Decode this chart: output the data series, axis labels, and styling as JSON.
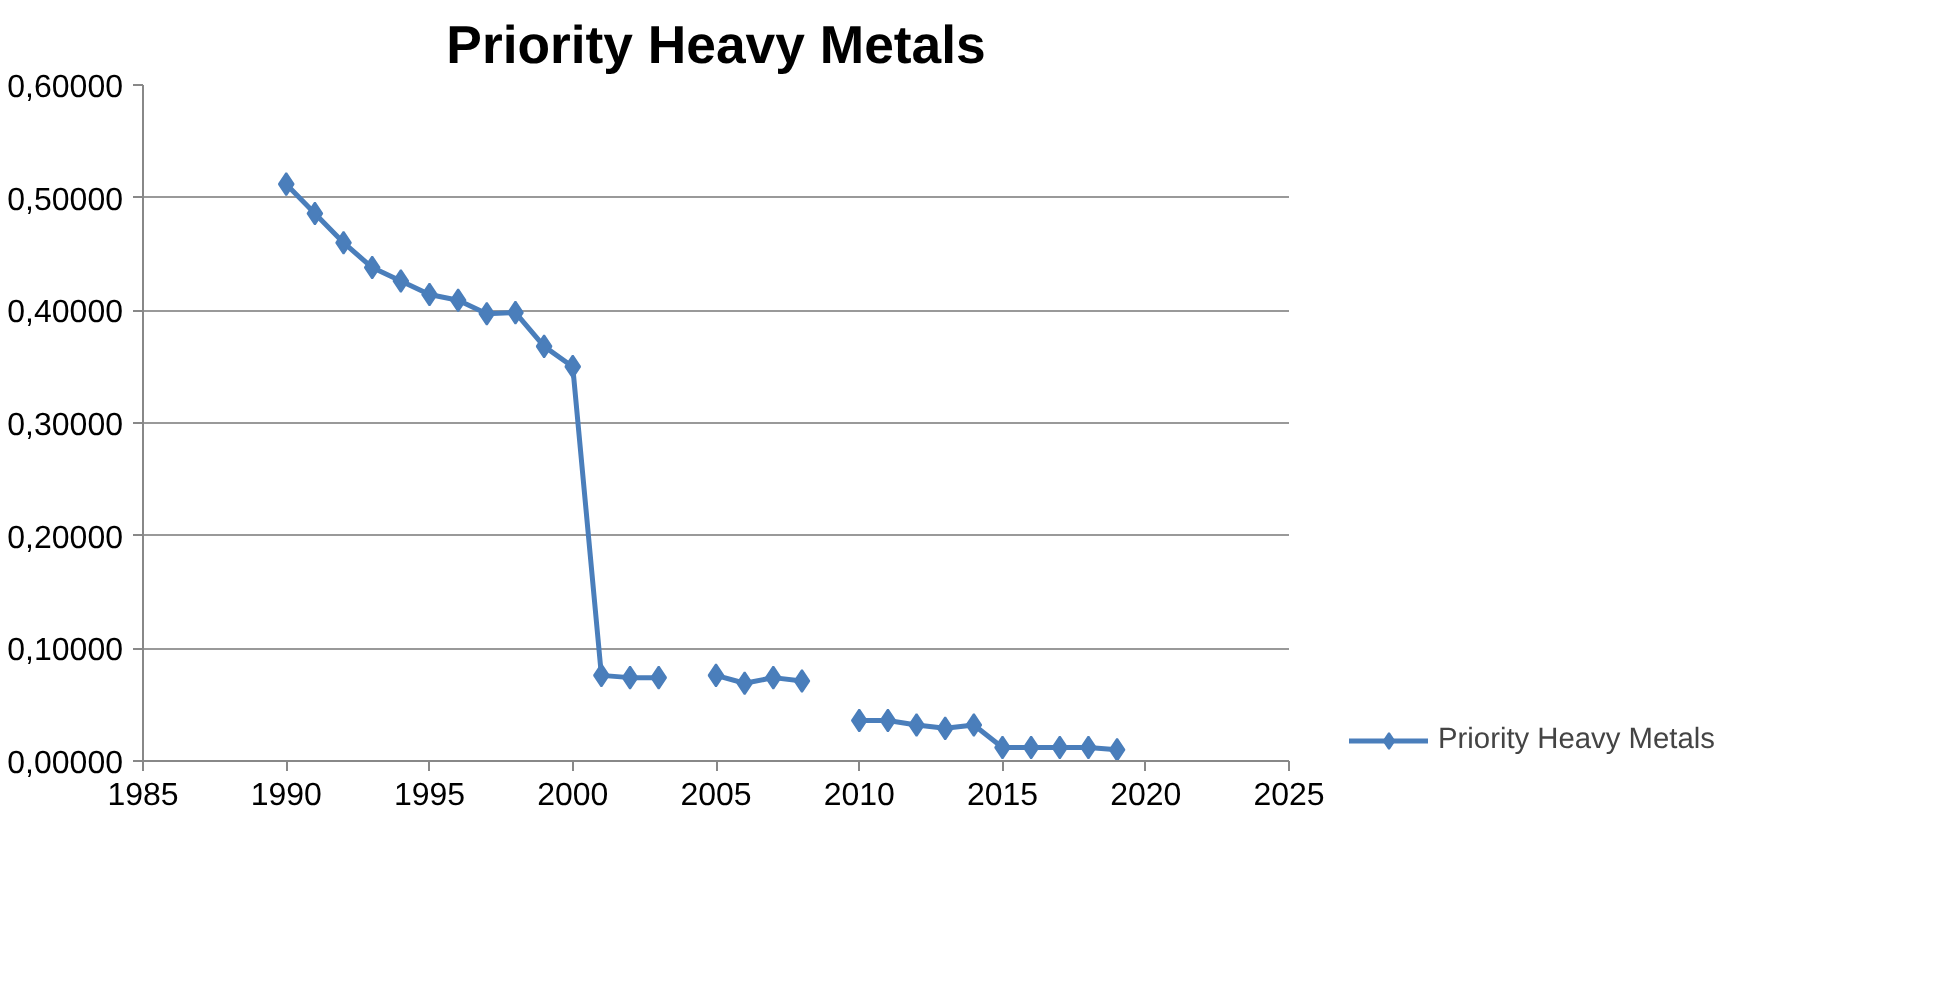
{
  "chart_data": {
    "type": "line",
    "title": "Priority Heavy Metals",
    "x": [
      1990,
      1991,
      1992,
      1993,
      1994,
      1995,
      1996,
      1997,
      1998,
      1999,
      2000,
      2001,
      2002,
      2003,
      2004,
      2005,
      2006,
      2007,
      2008,
      2009,
      2010,
      2011,
      2012,
      2013,
      2014,
      2015,
      2016,
      2017,
      2018,
      2019
    ],
    "series": [
      {
        "name": "Priority Heavy Metals",
        "color": "#4a7ebb",
        "values": [
          0.512,
          0.486,
          0.46,
          0.438,
          0.426,
          0.414,
          0.409,
          0.397,
          0.398,
          0.368,
          0.35,
          0.076,
          0.074,
          0.074,
          null,
          0.076,
          0.069,
          0.074,
          0.071,
          null,
          0.036,
          0.036,
          0.032,
          0.029,
          0.032,
          0.012,
          0.012,
          0.012,
          0.012,
          0.01
        ]
      }
    ],
    "xlim": [
      1985,
      2025
    ],
    "xticks": [
      1985,
      1990,
      1995,
      2000,
      2005,
      2010,
      2015,
      2020,
      2025
    ],
    "ylim": [
      0,
      0.6
    ],
    "yticks": [
      {
        "value": 0,
        "label": "0,00000"
      },
      {
        "value": 0.1,
        "label": "0,10000"
      },
      {
        "value": 0.2,
        "label": "0,20000"
      },
      {
        "value": 0.3,
        "label": "0,30000"
      },
      {
        "value": 0.4,
        "label": "0,40000"
      },
      {
        "value": 0.5,
        "label": "0,50000"
      },
      {
        "value": 0.6,
        "label": "0,60000"
      }
    ],
    "grid": "y",
    "legend": "right",
    "marker": "diamond",
    "line_style": "solid"
  }
}
